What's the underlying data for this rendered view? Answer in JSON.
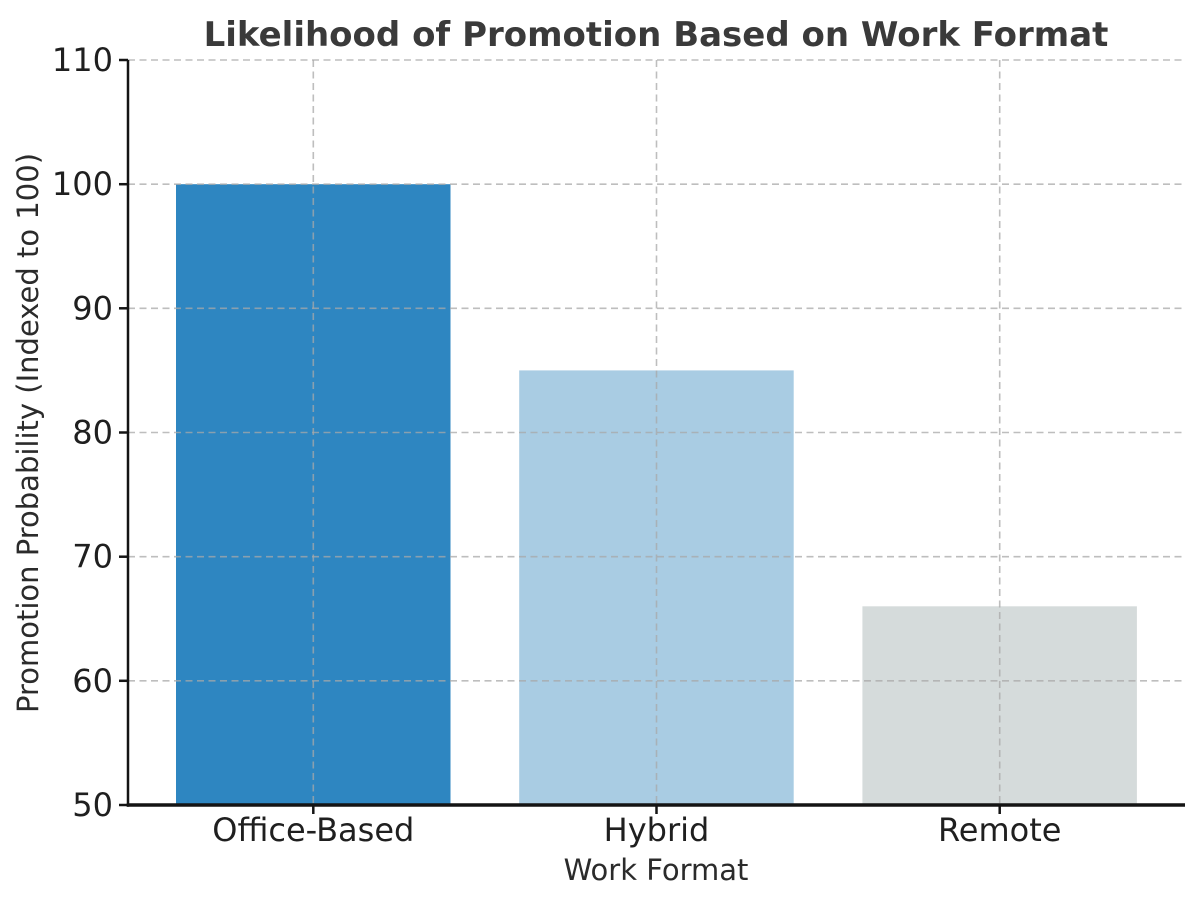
{
  "chart_data": {
    "type": "bar",
    "title": "Likelihood of Promotion Based on Work Format",
    "xlabel": "Work Format",
    "ylabel": "Promotion Probability (Indexed to 100)",
    "categories": [
      "Office-Based",
      "Hybrid",
      "Remote"
    ],
    "values": [
      100,
      85,
      66
    ],
    "bar_colors": [
      "#2E86C1",
      "#A9CCE3",
      "#D5DBDB"
    ],
    "baseline": 50,
    "ylim": [
      50,
      110
    ],
    "yticks": [
      50,
      60,
      70,
      80,
      90,
      100,
      110
    ],
    "xlim": [
      -0.54,
      2.54
    ],
    "bar_half_width": 0.4,
    "grid": {
      "show": true,
      "style": "dashed",
      "color": "#a8a8a8",
      "opacity": 0.75
    },
    "legend": {
      "visible": false
    },
    "colors": {
      "background": "#ffffff",
      "spine": "#141414",
      "title_text": "#3a3a3a",
      "axis_label_text": "#2b2b2b",
      "tick_label_text": "#1f1f1f"
    }
  }
}
